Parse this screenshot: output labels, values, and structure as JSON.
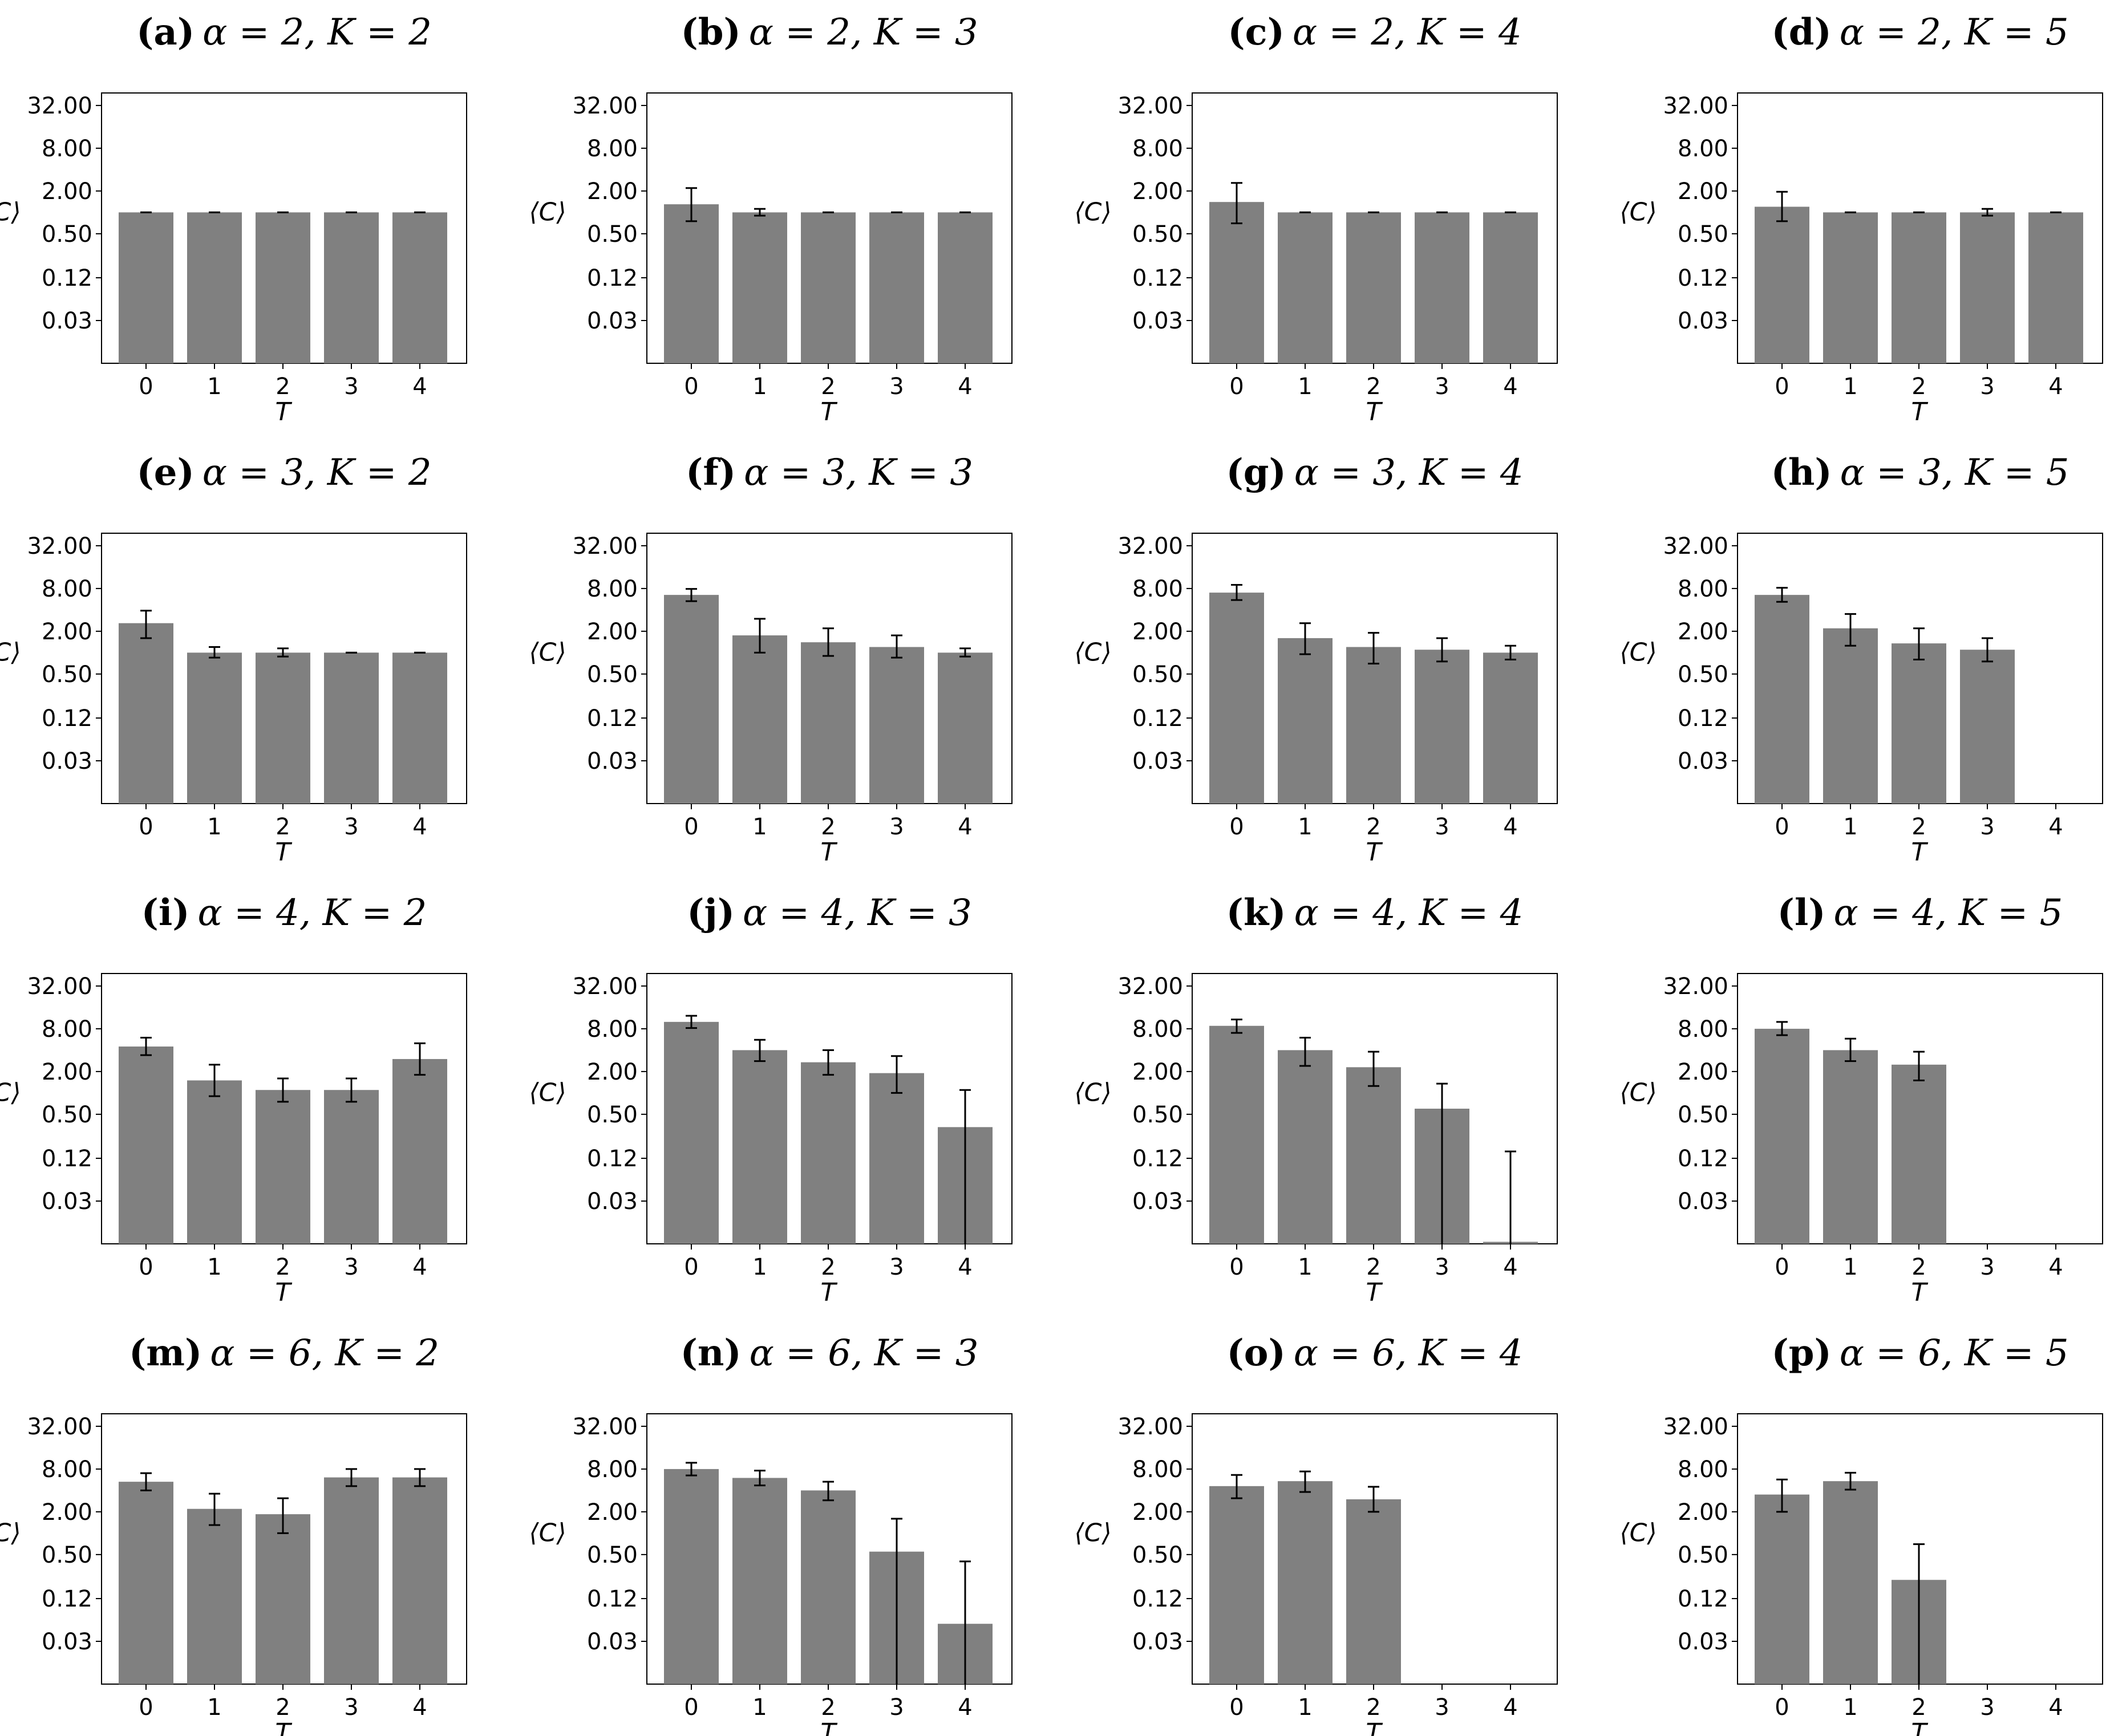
{
  "figure": {
    "ylabel": "⟨C⟩",
    "xlabel": "T",
    "y_ticks": [
      0.03,
      0.12,
      0.5,
      2.0,
      8.0,
      32.0
    ],
    "y_tick_labels": [
      "0.03",
      "0.12",
      "0.50",
      "2.00",
      "8.00",
      "32.00"
    ],
    "x_ticks": [
      "0",
      "1",
      "2",
      "3",
      "4"
    ],
    "bar_color": "#808080",
    "errorbar_color": "#000000"
  },
  "chart_data": [
    {
      "type": "bar",
      "panel": "a",
      "alpha": 2,
      "K": 2,
      "letter": "(a)",
      "params": "α = 2, K = 2",
      "categories": [
        "0",
        "1",
        "2",
        "3",
        "4"
      ],
      "values": [
        1.0,
        1.0,
        1.0,
        1.0,
        1.0
      ],
      "err_low": [
        1.0,
        1.0,
        1.0,
        1.0,
        1.0
      ],
      "err_high": [
        1.0,
        1.0,
        1.0,
        1.0,
        1.0
      ],
      "yscale": "log2",
      "ylim": [
        0.0075,
        48
      ]
    },
    {
      "type": "bar",
      "panel": "b",
      "alpha": 2,
      "K": 3,
      "letter": "(b)",
      "params": "α = 2, K = 3",
      "categories": [
        "0",
        "1",
        "2",
        "3",
        "4"
      ],
      "values": [
        1.3,
        1.0,
        1.0,
        1.0,
        1.0
      ],
      "err_low": [
        0.75,
        0.9,
        1.0,
        1.0,
        1.0
      ],
      "err_high": [
        2.2,
        1.12,
        1.0,
        1.0,
        1.0
      ],
      "yscale": "log2",
      "ylim": [
        0.0075,
        48
      ]
    },
    {
      "type": "bar",
      "panel": "c",
      "alpha": 2,
      "K": 4,
      "letter": "(c)",
      "params": "α = 2, K = 4",
      "categories": [
        "0",
        "1",
        "2",
        "3",
        "4"
      ],
      "values": [
        1.4,
        1.0,
        1.0,
        1.0,
        1.0
      ],
      "err_low": [
        0.7,
        1.0,
        1.0,
        1.0,
        1.0
      ],
      "err_high": [
        2.6,
        1.0,
        1.0,
        1.0,
        1.0
      ],
      "yscale": "log2",
      "ylim": [
        0.0075,
        48
      ]
    },
    {
      "type": "bar",
      "panel": "d",
      "alpha": 2,
      "K": 5,
      "letter": "(d)",
      "params": "α = 2, K = 5",
      "categories": [
        "0",
        "1",
        "2",
        "3",
        "4"
      ],
      "values": [
        1.2,
        1.0,
        1.0,
        1.0,
        1.0
      ],
      "err_low": [
        0.75,
        1.0,
        1.0,
        0.9,
        1.0
      ],
      "err_high": [
        1.95,
        1.0,
        1.0,
        1.12,
        1.0
      ],
      "yscale": "log2",
      "ylim": [
        0.0075,
        48
      ]
    },
    {
      "type": "bar",
      "panel": "e",
      "alpha": 3,
      "K": 2,
      "letter": "(e)",
      "params": "α = 3, K = 2",
      "categories": [
        "0",
        "1",
        "2",
        "3",
        "4"
      ],
      "values": [
        2.6,
        1.0,
        1.0,
        1.0,
        1.0
      ],
      "err_low": [
        1.6,
        0.85,
        0.88,
        1.0,
        1.0
      ],
      "err_high": [
        3.9,
        1.2,
        1.15,
        1.0,
        1.0
      ],
      "yscale": "log2",
      "ylim": [
        0.0075,
        48
      ]
    },
    {
      "type": "bar",
      "panel": "f",
      "alpha": 3,
      "K": 3,
      "letter": "(f)",
      "params": "α = 3, K = 3",
      "categories": [
        "0",
        "1",
        "2",
        "3",
        "4"
      ],
      "values": [
        6.5,
        1.75,
        1.4,
        1.2,
        1.0
      ],
      "err_low": [
        5.3,
        1.0,
        0.9,
        0.85,
        0.88
      ],
      "err_high": [
        7.9,
        3.0,
        2.2,
        1.75,
        1.15
      ],
      "yscale": "log2",
      "ylim": [
        0.0075,
        48
      ]
    },
    {
      "type": "bar",
      "panel": "g",
      "alpha": 3,
      "K": 4,
      "letter": "(g)",
      "params": "α = 3, K = 4",
      "categories": [
        "0",
        "1",
        "2",
        "3",
        "4"
      ],
      "values": [
        7.0,
        1.6,
        1.2,
        1.1,
        1.0
      ],
      "err_low": [
        5.5,
        0.95,
        0.7,
        0.75,
        0.8
      ],
      "err_high": [
        9.0,
        2.6,
        1.9,
        1.6,
        1.25
      ],
      "yscale": "log2",
      "ylim": [
        0.0075,
        48
      ]
    },
    {
      "type": "bar",
      "panel": "h",
      "alpha": 3,
      "K": 5,
      "letter": "(h)",
      "params": "α = 3, K = 5",
      "categories": [
        "0",
        "1",
        "2",
        "3",
        "4"
      ],
      "values": [
        6.5,
        2.2,
        1.35,
        1.1,
        null
      ],
      "err_low": [
        5.2,
        1.25,
        0.8,
        0.75,
        null
      ],
      "err_high": [
        8.2,
        3.5,
        2.2,
        1.6,
        null
      ],
      "yscale": "log2",
      "ylim": [
        0.0075,
        48
      ]
    },
    {
      "type": "bar",
      "panel": "i",
      "alpha": 4,
      "K": 2,
      "letter": "(i)",
      "params": "α = 4, K = 2",
      "categories": [
        "0",
        "1",
        "2",
        "3",
        "4"
      ],
      "values": [
        4.5,
        1.5,
        1.1,
        1.1,
        3.0
      ],
      "err_low": [
        3.4,
        0.9,
        0.75,
        0.75,
        1.8
      ],
      "err_high": [
        6.0,
        2.5,
        1.6,
        1.6,
        5.0
      ],
      "yscale": "log2",
      "ylim": [
        0.0075,
        48
      ]
    },
    {
      "type": "bar",
      "panel": "j",
      "alpha": 4,
      "K": 3,
      "letter": "(j)",
      "params": "α = 4, K = 3",
      "categories": [
        "0",
        "1",
        "2",
        "3",
        "4"
      ],
      "values": [
        10.0,
        4.0,
        2.7,
        1.9,
        0.33
      ],
      "err_low": [
        8.2,
        2.8,
        1.8,
        1.0,
        0.0075
      ],
      "err_high": [
        12.2,
        5.6,
        4.0,
        3.3,
        1.1
      ],
      "yscale": "log2",
      "ylim": [
        0.0075,
        48
      ]
    },
    {
      "type": "bar",
      "panel": "k",
      "alpha": 4,
      "K": 4,
      "letter": "(k)",
      "params": "α = 4, K = 4",
      "categories": [
        "0",
        "1",
        "2",
        "3",
        "4"
      ],
      "values": [
        8.8,
        4.0,
        2.3,
        0.6,
        0.008
      ],
      "err_low": [
        7.0,
        2.4,
        1.25,
        0.0075,
        0.0075
      ],
      "err_high": [
        10.8,
        6.0,
        3.8,
        1.35,
        0.15
      ],
      "yscale": "log2",
      "ylim": [
        0.0075,
        48
      ]
    },
    {
      "type": "bar",
      "panel": "l",
      "alpha": 4,
      "K": 5,
      "letter": "(l)",
      "params": "α = 4, K = 5",
      "categories": [
        "0",
        "1",
        "2",
        "3",
        "4"
      ],
      "values": [
        8.0,
        4.0,
        2.5,
        null,
        null
      ],
      "err_low": [
        6.5,
        2.8,
        1.5,
        null,
        null
      ],
      "err_high": [
        10.0,
        5.8,
        3.8,
        null,
        null
      ],
      "yscale": "log2",
      "ylim": [
        0.0075,
        48
      ]
    },
    {
      "type": "bar",
      "panel": "m",
      "alpha": 6,
      "K": 2,
      "letter": "(m)",
      "params": "α = 6, K = 2",
      "categories": [
        "0",
        "1",
        "2",
        "3",
        "4"
      ],
      "values": [
        5.3,
        2.2,
        1.85,
        6.1,
        6.1
      ],
      "err_low": [
        4.0,
        1.3,
        1.0,
        4.6,
        4.6
      ],
      "err_high": [
        7.0,
        3.6,
        3.1,
        8.0,
        8.0
      ],
      "yscale": "log2",
      "ylim": [
        0.0075,
        48
      ]
    },
    {
      "type": "bar",
      "panel": "n",
      "alpha": 6,
      "K": 3,
      "letter": "(n)",
      "params": "α = 6, K = 3",
      "categories": [
        "0",
        "1",
        "2",
        "3",
        "4"
      ],
      "values": [
        8.0,
        6.0,
        4.0,
        0.55,
        0.053
      ],
      "err_low": [
        6.5,
        4.7,
        2.9,
        0.0075,
        0.0075
      ],
      "err_high": [
        9.8,
        7.6,
        5.3,
        1.6,
        0.4
      ],
      "yscale": "log2",
      "ylim": [
        0.0075,
        48
      ]
    },
    {
      "type": "bar",
      "panel": "o",
      "alpha": 6,
      "K": 4,
      "letter": "(o)",
      "params": "α = 6, K = 4",
      "categories": [
        "0",
        "1",
        "2",
        "3",
        "4"
      ],
      "values": [
        4.6,
        5.4,
        3.0,
        null,
        null
      ],
      "err_low": [
        3.1,
        3.8,
        2.0,
        null,
        null
      ],
      "err_high": [
        6.6,
        7.4,
        4.5,
        null,
        null
      ],
      "yscale": "log2",
      "ylim": [
        0.0075,
        48
      ]
    },
    {
      "type": "bar",
      "panel": "p",
      "alpha": 6,
      "K": 5,
      "letter": "(p)",
      "params": "α = 6, K = 5",
      "categories": [
        "0",
        "1",
        "2",
        "3",
        "4"
      ],
      "values": [
        3.5,
        5.4,
        0.22,
        null,
        null
      ],
      "err_low": [
        2.0,
        4.1,
        0.0075,
        null,
        null
      ],
      "err_high": [
        5.7,
        7.1,
        0.7,
        null,
        null
      ],
      "yscale": "log2",
      "ylim": [
        0.0075,
        48
      ]
    }
  ]
}
